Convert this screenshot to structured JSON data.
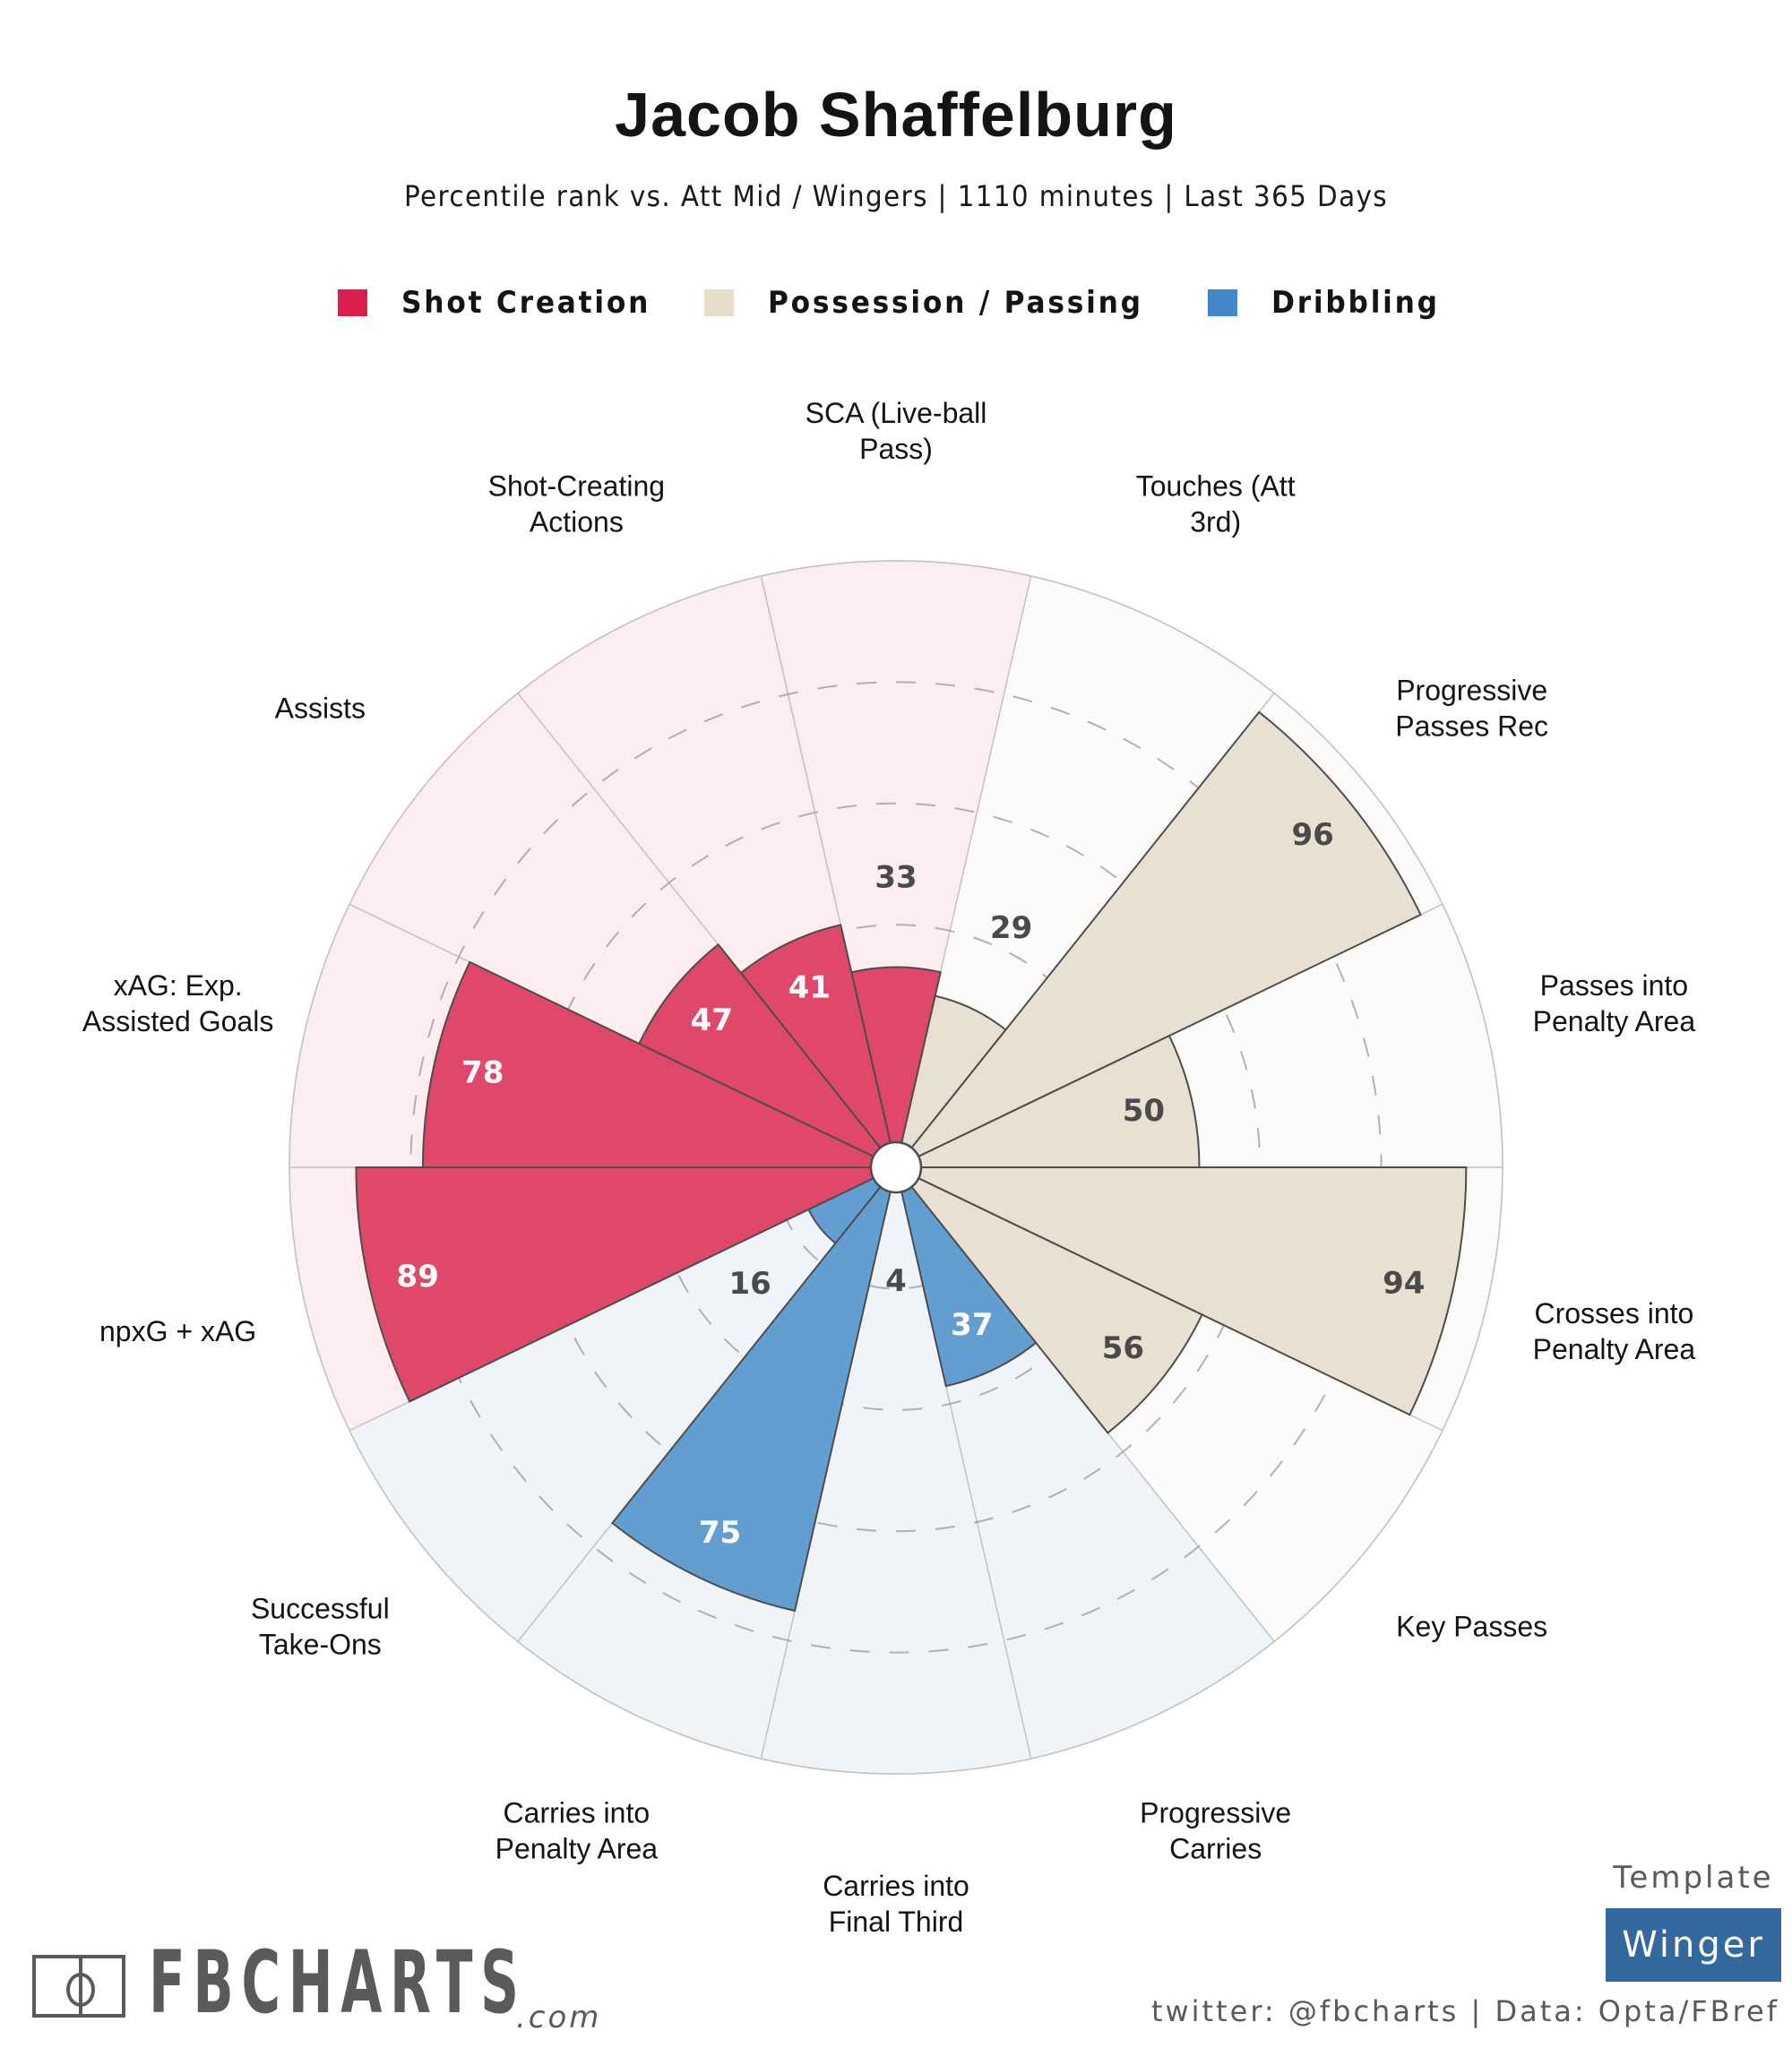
{
  "header": {
    "title": "Jacob Shaffelburg",
    "subtitle": "Percentile rank vs. Att Mid / Wingers | 1110 minutes | Last 365 Days"
  },
  "legend": [
    {
      "label": "Shot Creation",
      "color": "#dc1e4a"
    },
    {
      "label": "Possession / Passing",
      "color": "#e6dec9"
    },
    {
      "label": "Dribbling",
      "color": "#4287c7"
    }
  ],
  "chart_data": {
    "type": "polar-bar",
    "title": "Jacob Shaffelburg",
    "subtitle": "Percentile rank vs. Att Mid / Wingers | 1110 minutes | Last 365 Days",
    "rlim": [
      0,
      100
    ],
    "gridlines": [
      20,
      40,
      60,
      80
    ],
    "start": "top",
    "direction": "clockwise",
    "groups": {
      "Shot Creation": {
        "bar_color": "#e0486a",
        "bg_color": "#fcedf0",
        "inside_text": "#ffffff"
      },
      "Possession / Passing": {
        "bar_color": "#e8e1d1",
        "bg_color": "#fcfbfa",
        "inside_text": "#4a4a4a"
      },
      "Dribbling": {
        "bar_color": "#629ecf",
        "bg_color": "#eff4f8",
        "inside_text": "#ffffff"
      }
    },
    "categories": [
      {
        "label": "SCA (Live-ball Pass)",
        "lines": [
          "SCA (Live-ball",
          "Pass)"
        ],
        "group": "Shot Creation",
        "value": 33
      },
      {
        "label": "Touches (Att 3rd)",
        "lines": [
          "Touches (Att",
          "3rd)"
        ],
        "group": "Possession / Passing",
        "value": 29
      },
      {
        "label": "Progressive Passes Rec",
        "lines": [
          "Progressive",
          "Passes Rec"
        ],
        "group": "Possession / Passing",
        "value": 96
      },
      {
        "label": "Passes into Penalty Area",
        "lines": [
          "Passes into",
          "Penalty Area"
        ],
        "group": "Possession / Passing",
        "value": 50
      },
      {
        "label": "Crosses into Penalty Area",
        "lines": [
          "Crosses into",
          "Penalty Area"
        ],
        "group": "Possession / Passing",
        "value": 94
      },
      {
        "label": "Key Passes",
        "lines": [
          "Key Passes"
        ],
        "group": "Possession / Passing",
        "value": 56
      },
      {
        "label": "Progressive Carries",
        "lines": [
          "Progressive",
          "Carries"
        ],
        "group": "Dribbling",
        "value": 37
      },
      {
        "label": "Carries into Final Third",
        "lines": [
          "Carries into",
          "Final Third"
        ],
        "group": "Dribbling",
        "value": 4
      },
      {
        "label": "Carries into Penalty Area",
        "lines": [
          "Carries into",
          "Penalty Area"
        ],
        "group": "Dribbling",
        "value": 75
      },
      {
        "label": "Successful Take-Ons",
        "lines": [
          "Successful",
          "Take-Ons"
        ],
        "group": "Dribbling",
        "value": 16
      },
      {
        "label": "npxG + xAG",
        "lines": [
          "npxG + xAG"
        ],
        "group": "Shot Creation",
        "value": 89
      },
      {
        "label": "xAG: Exp. Assisted Goals",
        "lines": [
          "xAG: Exp.",
          "Assisted Goals"
        ],
        "group": "Shot Creation",
        "value": 78
      },
      {
        "label": "Assists",
        "lines": [
          "Assists"
        ],
        "group": "Shot Creation",
        "value": 47
      },
      {
        "label": "Shot-Creating Actions",
        "lines": [
          "Shot-Creating",
          "Actions"
        ],
        "group": "Shot Creation",
        "value": 41
      }
    ]
  },
  "footer": {
    "logo_text": "FBCHARTS",
    "logo_suffix": ".com",
    "template_label": "Template",
    "template_value": "Winger",
    "credits": "twitter: @fbcharts | Data: Opta/FBref"
  }
}
